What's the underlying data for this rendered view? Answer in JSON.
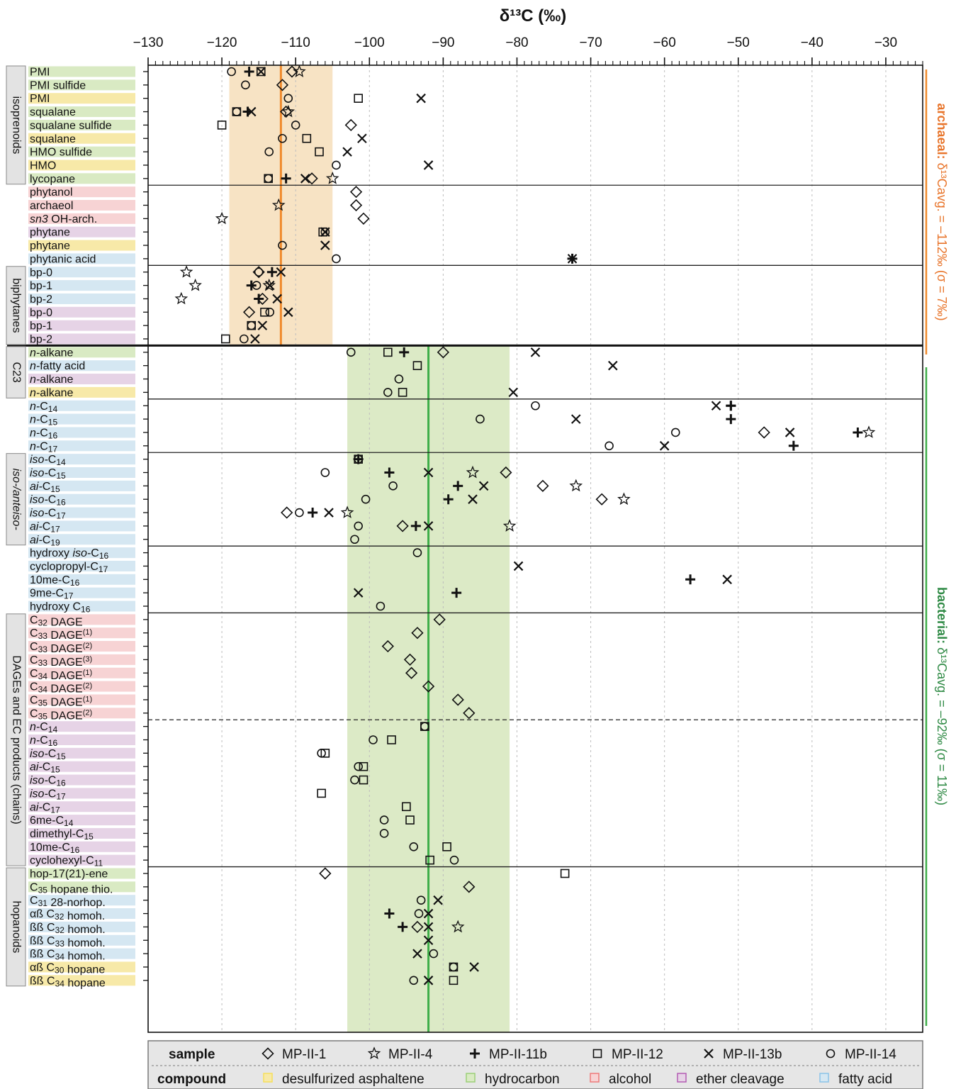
{
  "chart_data": {
    "type": "scatter",
    "title": "δ¹³C (‰)",
    "xlim": [
      -130,
      -25
    ],
    "xticks": [
      -130,
      -120,
      -110,
      -100,
      -90,
      -80,
      -70,
      -60,
      -50,
      -40,
      -30
    ],
    "grid": "vertical dotted",
    "categories": [
      {
        "label": "PMI",
        "compound": "hydrocarbon"
      },
      {
        "label": "PMI sulfide",
        "compound": "hydrocarbon"
      },
      {
        "label": "PMI",
        "compound": "desulfurized asphaltene"
      },
      {
        "label": "squalane",
        "compound": "hydrocarbon"
      },
      {
        "label": "squalane sulfide",
        "compound": "hydrocarbon"
      },
      {
        "label": "squalane",
        "compound": "desulfurized asphaltene"
      },
      {
        "label": "HMO sulfide",
        "compound": "hydrocarbon"
      },
      {
        "label": "HMO",
        "compound": "desulfurized asphaltene"
      },
      {
        "label": "lycopane",
        "compound": "hydrocarbon"
      },
      {
        "label": "phytanol",
        "compound": "alcohol"
      },
      {
        "label": "archaeol",
        "compound": "alcohol"
      },
      {
        "label": "sn3 OH-arch.",
        "compound": "alcohol"
      },
      {
        "label": "phytane",
        "compound": "ether cleavage"
      },
      {
        "label": "phytane",
        "compound": "desulfurized asphaltene"
      },
      {
        "label": "phytanic acid",
        "compound": "fatty acid"
      },
      {
        "label": "bp-0",
        "compound": "fatty acid"
      },
      {
        "label": "bp-1",
        "compound": "fatty acid"
      },
      {
        "label": "bp-2",
        "compound": "fatty acid"
      },
      {
        "label": "bp-0",
        "compound": "ether cleavage"
      },
      {
        "label": "bp-1",
        "compound": "ether cleavage"
      },
      {
        "label": "bp-2",
        "compound": "ether cleavage"
      },
      {
        "label": "n-alkane",
        "compound": "hydrocarbon"
      },
      {
        "label": "n-fatty acid",
        "compound": "fatty acid"
      },
      {
        "label": "n-alkane",
        "compound": "ether cleavage"
      },
      {
        "label": "n-alkane",
        "compound": "desulfurized asphaltene"
      },
      {
        "label": "n-C14",
        "compound": "fatty acid"
      },
      {
        "label": "n-C15",
        "compound": "fatty acid"
      },
      {
        "label": "n-C16",
        "compound": "fatty acid"
      },
      {
        "label": "n-C17",
        "compound": "fatty acid"
      },
      {
        "label": "iso-C14",
        "compound": "fatty acid"
      },
      {
        "label": "iso-C15",
        "compound": "fatty acid"
      },
      {
        "label": "ai-C15",
        "compound": "fatty acid"
      },
      {
        "label": "iso-C16",
        "compound": "fatty acid"
      },
      {
        "label": "iso-C17",
        "compound": "fatty acid"
      },
      {
        "label": "ai-C17",
        "compound": "fatty acid"
      },
      {
        "label": "ai-C19",
        "compound": "fatty acid"
      },
      {
        "label": "hydroxy iso-C16",
        "compound": "fatty acid"
      },
      {
        "label": "cyclopropyl-C17",
        "compound": "fatty acid"
      },
      {
        "label": "10me-C16",
        "compound": "fatty acid"
      },
      {
        "label": "9me-C17",
        "compound": "fatty acid"
      },
      {
        "label": "hydroxy C16",
        "compound": "fatty acid"
      },
      {
        "label": "C32 DAGE",
        "compound": "alcohol"
      },
      {
        "label": "C33 DAGE(1)",
        "compound": "alcohol"
      },
      {
        "label": "C33 DAGE(2)",
        "compound": "alcohol"
      },
      {
        "label": "C33 DAGE(3)",
        "compound": "alcohol"
      },
      {
        "label": "C34 DAGE(1)",
        "compound": "alcohol"
      },
      {
        "label": "C34 DAGE(2)",
        "compound": "alcohol"
      },
      {
        "label": "C35 DAGE(1)",
        "compound": "alcohol"
      },
      {
        "label": "C35 DAGE(2)",
        "compound": "alcohol"
      },
      {
        "label": "n-C14",
        "compound": "ether cleavage"
      },
      {
        "label": "n-C16",
        "compound": "ether cleavage"
      },
      {
        "label": "iso-C15",
        "compound": "ether cleavage"
      },
      {
        "label": "ai-C15",
        "compound": "ether cleavage"
      },
      {
        "label": "iso-C16",
        "compound": "ether cleavage"
      },
      {
        "label": "iso-C17",
        "compound": "ether cleavage"
      },
      {
        "label": "ai-C17",
        "compound": "ether cleavage"
      },
      {
        "label": "6me-C14",
        "compound": "ether cleavage"
      },
      {
        "label": "dimethyl-C15",
        "compound": "ether cleavage"
      },
      {
        "label": "10me-C16",
        "compound": "ether cleavage"
      },
      {
        "label": "cyclohexyl-C11",
        "compound": "ether cleavage"
      },
      {
        "label": "hop-17(21)-ene",
        "compound": "hydrocarbon"
      },
      {
        "label": "C35 hopane thio.",
        "compound": "hydrocarbon"
      },
      {
        "label": "C31 28-norhop.",
        "compound": "fatty acid"
      },
      {
        "label": "αß C32 homoh.",
        "compound": "fatty acid"
      },
      {
        "label": "ßß C32 homoh.",
        "compound": "fatty acid"
      },
      {
        "label": "ßß C33 homoh.",
        "compound": "fatty acid"
      },
      {
        "label": "ßß C34 homoh.",
        "compound": "fatty acid"
      },
      {
        "label": "αß C30 hopane",
        "compound": "desulfurized asphaltene"
      },
      {
        "label": "ßß C34 hopane",
        "compound": "desulfurized asphaltene"
      }
    ],
    "groups": [
      {
        "label": "isoprenoids",
        "from": 0,
        "to": 8
      },
      {
        "label": "biphytanes",
        "from": 15,
        "to": 20
      },
      {
        "label": "C23",
        "from": 21,
        "to": 24
      },
      {
        "label": "iso-/anteiso-",
        "from": 29,
        "to": 35
      },
      {
        "label": "DAGEs and EC products (chains)",
        "from": 41,
        "to": 59
      },
      {
        "label": "hopanoids",
        "from": 60,
        "to": 68
      }
    ],
    "separators": [
      8.5,
      14.5,
      24.5,
      28.5,
      35.5,
      40.5,
      59.5
    ],
    "thick_separator": 20.5,
    "dashed_separator": 48.5,
    "bands": [
      {
        "name": "archaeal",
        "from_row": 0,
        "to_row": 20,
        "mean": -112,
        "range": [
          -119,
          -105
        ],
        "color": "#f7e3c4",
        "line_color": "#f08a2c"
      },
      {
        "name": "bacterial",
        "from_row": 21,
        "to_row": 68,
        "mean": -92,
        "range": [
          -103,
          -81
        ],
        "color": "#dceac6",
        "line_color": "#3fae49"
      }
    ],
    "side_labels": {
      "archaeal": "archaeal: δ¹³Cavg. = –112‰ (σ = 7‰)",
      "bacterial": "bacterial: δ¹³Cavg. = –92‰ (σ = 11‰)"
    },
    "series": [
      {
        "name": "MP-II-1",
        "marker": "diamond",
        "points": [
          [
            -110.5,
            0
          ],
          [
            -111.8,
            1
          ],
          [
            -111.3,
            3
          ],
          [
            -102.5,
            4
          ],
          [
            -107.8,
            8
          ],
          [
            -101.8,
            9
          ],
          [
            -101.8,
            10
          ],
          [
            -100.8,
            11
          ],
          [
            -115,
            15
          ],
          [
            -114.5,
            17
          ],
          [
            -116.3,
            18
          ],
          [
            -90,
            21
          ],
          [
            -81.5,
            30
          ],
          [
            -76.5,
            31
          ],
          [
            -111.2,
            33
          ],
          [
            -68.5,
            32
          ],
          [
            -95.5,
            34
          ],
          [
            -46.5,
            27
          ],
          [
            -90.5,
            41
          ],
          [
            -93.5,
            42
          ],
          [
            -97.5,
            43
          ],
          [
            -94.5,
            44
          ],
          [
            -94.3,
            45
          ],
          [
            -92,
            46
          ],
          [
            -88,
            47
          ],
          [
            -86.5,
            48
          ],
          [
            -106,
            60
          ],
          [
            -86.5,
            61
          ],
          [
            -93.5,
            64
          ]
        ]
      },
      {
        "name": "MP-II-4",
        "marker": "star",
        "points": [
          [
            -109.5,
            0
          ],
          [
            -111,
            3
          ],
          [
            -105,
            8
          ],
          [
            -112.3,
            10
          ],
          [
            -120,
            11
          ],
          [
            -124.8,
            15
          ],
          [
            -123.6,
            16
          ],
          [
            -125.5,
            17
          ],
          [
            -113.6,
            16
          ],
          [
            -86,
            30
          ],
          [
            -72,
            31
          ],
          [
            -65.5,
            32
          ],
          [
            -103,
            33
          ],
          [
            -81,
            34
          ],
          [
            -32.3,
            27
          ],
          [
            -88,
            64
          ]
        ]
      },
      {
        "name": "MP-II-11b",
        "marker": "plus",
        "points": [
          [
            -116.3,
            0
          ],
          [
            -116.5,
            3
          ],
          [
            -111.3,
            8
          ],
          [
            -72.5,
            14
          ],
          [
            -113.2,
            15
          ],
          [
            -116,
            16
          ],
          [
            -115,
            17
          ],
          [
            -95.3,
            21
          ],
          [
            -51,
            25
          ],
          [
            -51,
            26
          ],
          [
            -33.8,
            27
          ],
          [
            -42.5,
            28
          ],
          [
            -51,
            25
          ],
          [
            -101.5,
            29
          ],
          [
            -97.3,
            30
          ],
          [
            -88,
            31
          ],
          [
            -89.3,
            32
          ],
          [
            -107.7,
            33
          ],
          [
            -93.7,
            34
          ],
          [
            -56.5,
            38
          ],
          [
            -88.2,
            39
          ],
          [
            -97.3,
            63
          ],
          [
            -95.5,
            64
          ]
        ]
      },
      {
        "name": "MP-II-12",
        "marker": "square",
        "points": [
          [
            -114.7,
            0
          ],
          [
            -101.5,
            2
          ],
          [
            -118,
            3
          ],
          [
            -120,
            4
          ],
          [
            -108.5,
            5
          ],
          [
            -106.8,
            6
          ],
          [
            -113.7,
            8
          ],
          [
            -106.3,
            12
          ],
          [
            -114.2,
            18
          ],
          [
            -116,
            19
          ],
          [
            -119.5,
            20
          ],
          [
            -97.5,
            21
          ],
          [
            -93.5,
            22
          ],
          [
            -95.5,
            24
          ],
          [
            -92.5,
            49
          ],
          [
            -97,
            50
          ],
          [
            -106,
            51
          ],
          [
            -100.8,
            52
          ],
          [
            -100.8,
            53
          ],
          [
            -106.5,
            54
          ],
          [
            -95,
            55
          ],
          [
            -94.5,
            56
          ],
          [
            -89.5,
            58
          ],
          [
            -91.8,
            59
          ],
          [
            -73.5,
            60
          ],
          [
            -88.6,
            67
          ],
          [
            -88.6,
            68
          ],
          [
            -101.5,
            29
          ]
        ]
      },
      {
        "name": "MP-II-13b",
        "marker": "x",
        "points": [
          [
            -114.7,
            0
          ],
          [
            -93,
            2
          ],
          [
            -116,
            3
          ],
          [
            -101,
            5
          ],
          [
            -103,
            6
          ],
          [
            -92,
            7
          ],
          [
            -108.7,
            8
          ],
          [
            -106,
            12
          ],
          [
            -106,
            13
          ],
          [
            -72.5,
            14
          ],
          [
            -112,
            15
          ],
          [
            -113.5,
            16
          ],
          [
            -112.5,
            17
          ],
          [
            -111,
            18
          ],
          [
            -114.5,
            19
          ],
          [
            -115.5,
            20
          ],
          [
            -77.5,
            21
          ],
          [
            -67,
            22
          ],
          [
            -80.5,
            24
          ],
          [
            -53,
            25
          ],
          [
            -72,
            26
          ],
          [
            -43,
            27
          ],
          [
            -60,
            28
          ],
          [
            -92,
            30
          ],
          [
            -84.5,
            31
          ],
          [
            -86,
            32
          ],
          [
            -105.5,
            33
          ],
          [
            -92,
            34
          ],
          [
            -79.8,
            37
          ],
          [
            -51.5,
            38
          ],
          [
            -101.5,
            39
          ],
          [
            -90.7,
            62
          ],
          [
            -92,
            63
          ],
          [
            -92,
            64
          ],
          [
            -92,
            65
          ],
          [
            -93.5,
            66
          ],
          [
            -85.8,
            67
          ],
          [
            -92,
            68
          ]
        ]
      },
      {
        "name": "MP-II-14",
        "marker": "circle",
        "points": [
          [
            -118.7,
            0
          ],
          [
            -116.8,
            1
          ],
          [
            -111,
            2
          ],
          [
            -118,
            3
          ],
          [
            -110,
            4
          ],
          [
            -111.8,
            5
          ],
          [
            -113.6,
            6
          ],
          [
            -104.5,
            7
          ],
          [
            -113.7,
            8
          ],
          [
            -106,
            12
          ],
          [
            -111.8,
            13
          ],
          [
            -104.5,
            14
          ],
          [
            -115,
            15
          ],
          [
            -115.3,
            16
          ],
          [
            -113.5,
            18
          ],
          [
            -116,
            19
          ],
          [
            -117,
            20
          ],
          [
            -102.5,
            21
          ],
          [
            -96,
            23
          ],
          [
            -97.5,
            24
          ],
          [
            -77.5,
            25
          ],
          [
            -85,
            26
          ],
          [
            -58.5,
            27
          ],
          [
            -67.5,
            28
          ],
          [
            -101.5,
            29
          ],
          [
            -106,
            30
          ],
          [
            -96.8,
            31
          ],
          [
            -100.5,
            32
          ],
          [
            -109.5,
            33
          ],
          [
            -101.5,
            34
          ],
          [
            -102,
            35
          ],
          [
            -93.5,
            36
          ],
          [
            -98.5,
            40
          ],
          [
            -92.5,
            49
          ],
          [
            -99.5,
            50
          ],
          [
            -106.5,
            51
          ],
          [
            -101.5,
            52
          ],
          [
            -102,
            53
          ],
          [
            -98,
            56
          ],
          [
            -98,
            57
          ],
          [
            -94,
            58
          ],
          [
            -88.5,
            59
          ],
          [
            -93,
            62
          ],
          [
            -93.3,
            63
          ],
          [
            -91.3,
            66
          ],
          [
            -88.6,
            67
          ],
          [
            -94,
            68
          ]
        ]
      }
    ],
    "legend": {
      "sample_title": "sample",
      "samples": [
        {
          "name": "MP-II-1",
          "marker": "diamond"
        },
        {
          "name": "MP-II-4",
          "marker": "star"
        },
        {
          "name": "MP-II-11b",
          "marker": "plus"
        },
        {
          "name": "MP-II-12",
          "marker": "square"
        },
        {
          "name": "MP-II-13b",
          "marker": "x"
        },
        {
          "name": "MP-II-14",
          "marker": "circle"
        }
      ],
      "compound_title": "compound",
      "compounds": [
        {
          "name": "desulfurized asphaltene",
          "color": "#f7e9a8",
          "swatch": "#f5df5c"
        },
        {
          "name": "hydrocarbon",
          "color": "#d9eac3",
          "swatch": "#9ccf78"
        },
        {
          "name": "alcohol",
          "color": "#f7d3d4",
          "swatch": "#ee7b7b"
        },
        {
          "name": "ether cleavage",
          "color": "#e6d3e6",
          "swatch": "#b45cb4"
        },
        {
          "name": "fatty acid",
          "color": "#d5e7f2",
          "swatch": "#8cc4e8"
        }
      ]
    }
  }
}
